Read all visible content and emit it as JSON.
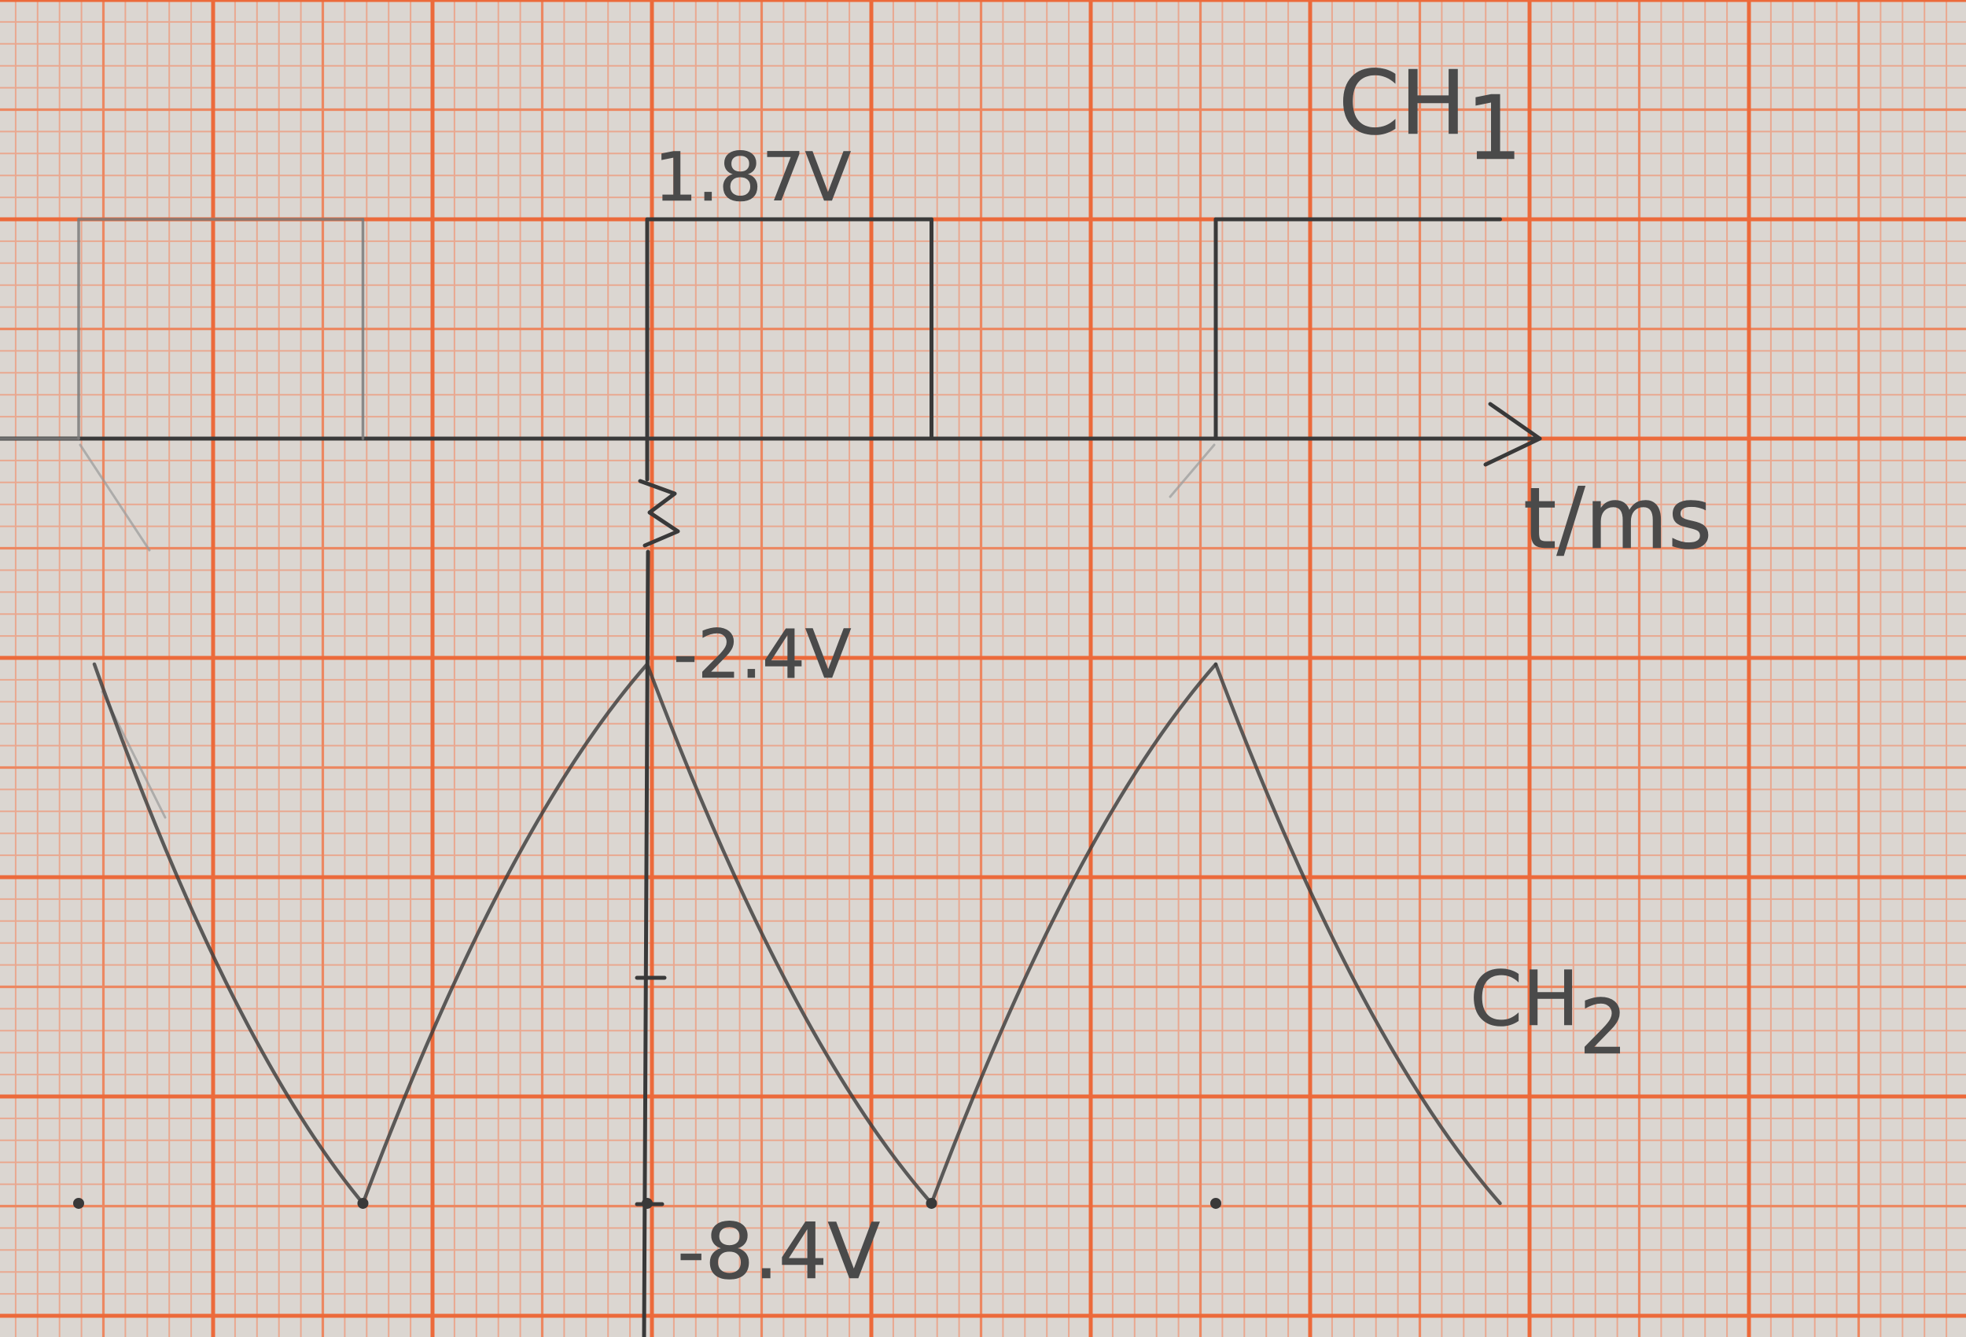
{
  "colors": {
    "paper": "#dbd6d1",
    "grid_major": "#ec6a3b",
    "grid_medium": "#ec8862",
    "grid_minor": "#e9a890",
    "pencil_dark": "#393939",
    "pencil_light": "#7b7b7b"
  },
  "chart_data": {
    "type": "line",
    "xlabel": "t/ms",
    "grid": true,
    "x_axis_arrow": true,
    "y_axis_break": true,
    "series": [
      {
        "name": "CH1",
        "step": true,
        "values": [
          0,
          1.87,
          0,
          1.87,
          0,
          1.87
        ],
        "annotations": [
          {
            "value": 1.87,
            "label": "1.87V"
          }
        ]
      },
      {
        "name": "CH2",
        "step": false,
        "values": [
          -2.4,
          -8.4,
          -2.4,
          -8.4,
          -2.4,
          -8.4
        ],
        "annotations": [
          {
            "value": -2.4,
            "label": "-2.4V"
          },
          {
            "value": -8.4,
            "label": "-8.4V"
          }
        ]
      }
    ]
  }
}
